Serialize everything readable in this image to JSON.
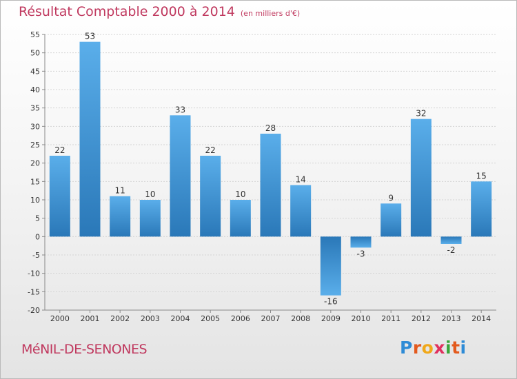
{
  "title": "Résultat Comptable 2000 à 2014",
  "subtitle": "(en milliers d'€)",
  "town": "MéNIL-DE-SENONES",
  "logo": {
    "letters": [
      "P",
      "r",
      "o",
      "x",
      "i",
      "t",
      "i"
    ],
    "colors": [
      "#2e8bd6",
      "#e35a1e",
      "#f0a81a",
      "#e0315e",
      "#3aa63a",
      "#e35a1e",
      "#2e8bd6"
    ]
  },
  "colors": {
    "bar_light": "#5aaeea",
    "bar_dark": "#2a78b8",
    "title": "#c0395f"
  },
  "chart_data": {
    "type": "bar",
    "title": "Résultat Comptable 2000 à 2014",
    "xlabel": "",
    "ylabel": "",
    "categories": [
      "2000",
      "2001",
      "2002",
      "2003",
      "2004",
      "2005",
      "2006",
      "2007",
      "2008",
      "2009",
      "2010",
      "2011",
      "2012",
      "2013",
      "2014"
    ],
    "values": [
      22,
      53,
      11,
      10,
      33,
      22,
      10,
      28,
      14,
      -16,
      -3,
      9,
      32,
      -2,
      15
    ],
    "ylim": [
      -20,
      55
    ],
    "yticks": [
      55,
      50,
      45,
      40,
      35,
      30,
      25,
      20,
      15,
      10,
      5,
      0,
      -5,
      -10,
      -15,
      -20
    ],
    "grid": true
  }
}
